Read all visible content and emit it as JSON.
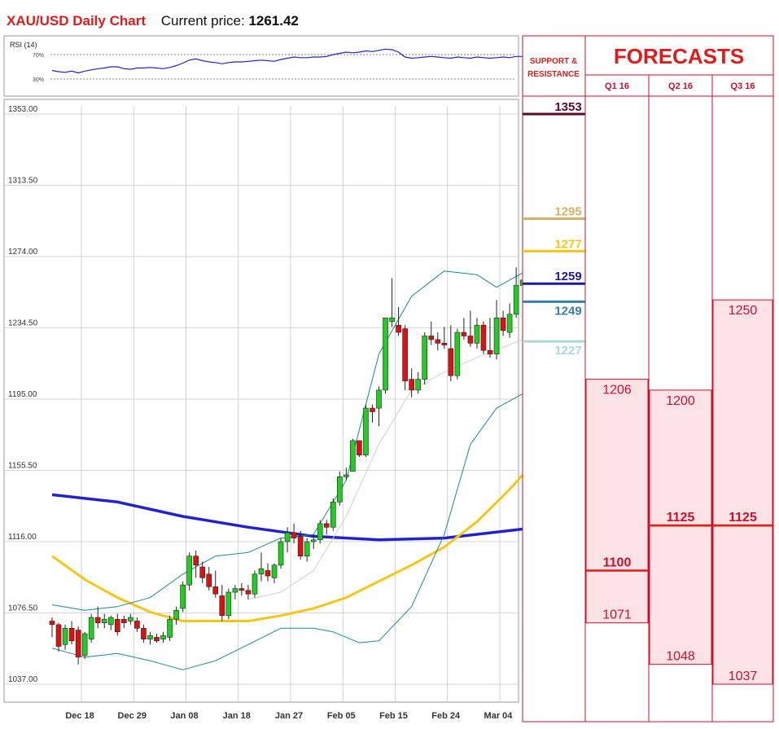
{
  "header": {
    "title": "XAU/USD Daily Chart",
    "price_label": "Current price:",
    "price_value": "1261.42"
  },
  "rsi_panel": {
    "label": "RSI (14)",
    "upper_level": "70%",
    "lower_level": "30%"
  },
  "forecast_panel": {
    "title": "FORECASTS",
    "sr_header": "SUPPORT & RESISTANCE",
    "quarters": [
      "Q1 16",
      "Q2 16",
      "Q3 16"
    ],
    "levels": [
      {
        "label": "1353",
        "value": 1353,
        "color": "#5a0a2a"
      },
      {
        "label": "1295",
        "value": 1295,
        "color": "#d4b26a"
      },
      {
        "label": "1277",
        "value": 1277,
        "color": "#f5c518"
      },
      {
        "label": "1259",
        "value": 1259,
        "color": "#1a1aa6"
      },
      {
        "label": "1249",
        "value": 1249,
        "color": "#3a7ca8"
      },
      {
        "label": "1227",
        "value": 1227,
        "color": "#a8d8d8"
      }
    ],
    "forecasts": [
      {
        "quarter": "Q1 16",
        "high": "1206",
        "median": "1100",
        "low": "1071",
        "high_v": 1206,
        "median_v": 1100,
        "low_v": 1071
      },
      {
        "quarter": "Q2 16",
        "high": "1200",
        "median": "1125",
        "low": "1048",
        "high_v": 1200,
        "median_v": 1125,
        "low_v": 1048
      },
      {
        "quarter": "Q3 16",
        "high": "1250",
        "median": "1125",
        "low": "1037",
        "high_v": 1250,
        "median_v": 1125,
        "low_v": 1037
      }
    ]
  },
  "colors": {
    "accent_red": "#e01b1b",
    "up": "#22cc22",
    "down": "#dd1111",
    "sma_blue": "#2222cc",
    "sma_yellow": "#f5c518",
    "bollinger": "#1a8a8a",
    "forecast_fill": "#fde3e6"
  },
  "chart_data": {
    "type": "candlestick",
    "title": "XAU/USD Daily Chart",
    "ylim": [
      1037,
      1353
    ],
    "y_ticks": [
      "1353.00",
      "1313.50",
      "1274.00",
      "1234.50",
      "1195.00",
      "1155.50",
      "1116.00",
      "1076.50",
      "1037.00"
    ],
    "y_tick_values": [
      1353,
      1313.5,
      1274,
      1234.5,
      1195,
      1155.5,
      1116,
      1076.5,
      1037
    ],
    "x_ticks": [
      "Dec 18",
      "Dec 29",
      "Jan 08",
      "Jan 18",
      "Jan 27",
      "Feb 05",
      "Feb 15",
      "Feb 24",
      "Mar 04"
    ],
    "x_tick_index": [
      2,
      10,
      18,
      26,
      34,
      42,
      50,
      58,
      66
    ],
    "grid": true,
    "candles": [
      [
        1072,
        1074,
        1063,
        1070
      ],
      [
        1070,
        1071,
        1055,
        1058
      ],
      [
        1059,
        1070,
        1056,
        1068
      ],
      [
        1068,
        1072,
        1059,
        1061
      ],
      [
        1067,
        1069,
        1048,
        1052
      ],
      [
        1053,
        1066,
        1051,
        1065
      ],
      [
        1062,
        1076,
        1060,
        1074
      ],
      [
        1074,
        1080,
        1068,
        1071
      ],
      [
        1071,
        1076,
        1068,
        1073
      ],
      [
        1070,
        1075,
        1067,
        1074
      ],
      [
        1073,
        1076,
        1064,
        1066
      ],
      [
        1073,
        1075,
        1068,
        1071
      ],
      [
        1072,
        1076,
        1070,
        1074
      ],
      [
        1072,
        1074,
        1066,
        1068
      ],
      [
        1068,
        1070,
        1060,
        1062
      ],
      [
        1062,
        1066,
        1059,
        1064
      ],
      [
        1063,
        1065,
        1060,
        1061
      ],
      [
        1062,
        1066,
        1060,
        1064
      ],
      [
        1063,
        1075,
        1061,
        1073
      ],
      [
        1073,
        1080,
        1070,
        1078
      ],
      [
        1079,
        1094,
        1077,
        1092
      ],
      [
        1092,
        1110,
        1089,
        1108
      ],
      [
        1108,
        1111,
        1096,
        1103
      ],
      [
        1102,
        1105,
        1093,
        1096
      ],
      [
        1098,
        1102,
        1089,
        1091
      ],
      [
        1091,
        1100,
        1085,
        1087
      ],
      [
        1086,
        1092,
        1072,
        1075
      ],
      [
        1075,
        1090,
        1073,
        1088
      ],
      [
        1088,
        1092,
        1084,
        1090
      ],
      [
        1090,
        1093,
        1086,
        1089
      ],
      [
        1089,
        1092,
        1084,
        1087
      ],
      [
        1087,
        1100,
        1085,
        1098
      ],
      [
        1098,
        1110,
        1094,
        1101
      ],
      [
        1100,
        1104,
        1094,
        1097
      ],
      [
        1096,
        1104,
        1093,
        1103
      ],
      [
        1103,
        1118,
        1101,
        1116
      ],
      [
        1116,
        1124,
        1110,
        1121
      ],
      [
        1121,
        1126,
        1115,
        1118
      ],
      [
        1119,
        1122,
        1106,
        1108
      ],
      [
        1108,
        1118,
        1105,
        1116
      ],
      [
        1116,
        1120,
        1112,
        1117
      ],
      [
        1117,
        1128,
        1115,
        1126
      ],
      [
        1126,
        1128,
        1120,
        1124
      ],
      [
        1124,
        1140,
        1122,
        1138
      ],
      [
        1138,
        1155,
        1136,
        1152
      ],
      [
        1152,
        1157,
        1150,
        1153
      ],
      [
        1155,
        1173,
        1155,
        1172
      ],
      [
        1172,
        1172,
        1163,
        1164
      ],
      [
        1164,
        1192,
        1163,
        1190
      ],
      [
        1190,
        1192,
        1182,
        1188
      ],
      [
        1190,
        1202,
        1180,
        1200
      ],
      [
        1200,
        1240,
        1198,
        1240
      ],
      [
        1238,
        1262,
        1235,
        1240
      ],
      [
        1236,
        1246,
        1230,
        1232
      ],
      [
        1234,
        1236,
        1200,
        1205
      ],
      [
        1206,
        1212,
        1196,
        1200
      ],
      [
        1200,
        1210,
        1198,
        1206
      ],
      [
        1206,
        1232,
        1203,
        1230
      ],
      [
        1230,
        1238,
        1225,
        1228
      ],
      [
        1228,
        1232,
        1222,
        1226
      ],
      [
        1226,
        1235,
        1223,
        1225
      ],
      [
        1223,
        1236,
        1205,
        1208
      ],
      [
        1208,
        1234,
        1206,
        1232
      ],
      [
        1232,
        1240,
        1228,
        1230
      ],
      [
        1230,
        1244,
        1224,
        1226
      ],
      [
        1226,
        1240,
        1223,
        1236
      ],
      [
        1236,
        1238,
        1220,
        1222
      ],
      [
        1222,
        1240,
        1218,
        1220
      ],
      [
        1220,
        1250,
        1217,
        1240
      ],
      [
        1240,
        1244,
        1230,
        1233
      ],
      [
        1232,
        1248,
        1229,
        1242
      ],
      [
        1242,
        1268,
        1240,
        1258
      ],
      [
        1258,
        1262,
        1256,
        1261
      ]
    ],
    "series": [
      {
        "name": "",
        "color": "#2222cc",
        "width": 3.5,
        "values": [
          [
            0,
            1142
          ],
          [
            10,
            1138
          ],
          [
            20,
            1130
          ],
          [
            30,
            1124
          ],
          [
            40,
            1119
          ],
          [
            50,
            1117
          ],
          [
            60,
            1118
          ],
          [
            72,
            1123
          ]
        ]
      },
      {
        "name": "",
        "color": "#f5c518",
        "width": 3,
        "values": [
          [
            0,
            1108
          ],
          [
            5,
            1095
          ],
          [
            10,
            1085
          ],
          [
            15,
            1077
          ],
          [
            20,
            1072
          ],
          [
            25,
            1072
          ],
          [
            30,
            1072
          ],
          [
            35,
            1075
          ],
          [
            40,
            1079
          ],
          [
            45,
            1085
          ],
          [
            50,
            1094
          ],
          [
            55,
            1103
          ],
          [
            60,
            1113
          ],
          [
            65,
            1127
          ],
          [
            70,
            1145
          ],
          [
            72,
            1153
          ]
        ]
      },
      {
        "name": "",
        "color": "#1a8a8a",
        "width": 1,
        "values": [
          [
            0,
            1081
          ],
          [
            5,
            1078
          ],
          [
            10,
            1080
          ],
          [
            15,
            1085
          ],
          [
            20,
            1098
          ],
          [
            25,
            1108
          ],
          [
            30,
            1110
          ],
          [
            35,
            1118
          ],
          [
            40,
            1120
          ],
          [
            45,
            1150
          ],
          [
            50,
            1220
          ],
          [
            55,
            1252
          ],
          [
            60,
            1266
          ],
          [
            65,
            1264
          ],
          [
            68,
            1257
          ],
          [
            72,
            1265
          ]
        ]
      },
      {
        "name": "",
        "color": "#1a8a8a",
        "width": 1,
        "values": [
          [
            0,
            1057
          ],
          [
            5,
            1052
          ],
          [
            10,
            1054
          ],
          [
            15,
            1050
          ],
          [
            20,
            1045
          ],
          [
            25,
            1050
          ],
          [
            30,
            1059
          ],
          [
            35,
            1068
          ],
          [
            40,
            1068
          ],
          [
            43,
            1066
          ],
          [
            47,
            1060
          ],
          [
            50,
            1061
          ],
          [
            55,
            1080
          ],
          [
            60,
            1120
          ],
          [
            64,
            1170
          ],
          [
            68,
            1190
          ],
          [
            72,
            1198
          ]
        ]
      },
      {
        "name": "",
        "color": "#d0d0d0",
        "width": 1,
        "values": [
          [
            30,
            1084
          ],
          [
            35,
            1088
          ],
          [
            40,
            1100
          ],
          [
            45,
            1130
          ],
          [
            50,
            1170
          ],
          [
            55,
            1200
          ],
          [
            60,
            1210
          ],
          [
            65,
            1218
          ],
          [
            72,
            1228
          ]
        ]
      }
    ],
    "rsi": [
      44,
      42,
      41,
      43,
      40,
      43,
      45,
      47,
      48,
      50,
      50,
      47,
      46,
      48,
      48,
      49,
      48,
      47,
      49,
      52,
      56,
      61,
      63,
      60,
      58,
      57,
      55,
      57,
      58,
      58,
      59,
      60,
      61,
      60,
      59,
      62,
      64,
      66,
      65,
      65,
      66,
      66,
      67,
      70,
      72,
      74,
      73,
      74,
      76,
      75,
      77,
      79,
      78,
      74,
      66,
      64,
      65,
      66,
      67,
      66,
      65,
      64,
      66,
      65,
      64,
      66,
      65,
      64,
      65,
      66,
      65,
      67,
      67
    ]
  }
}
